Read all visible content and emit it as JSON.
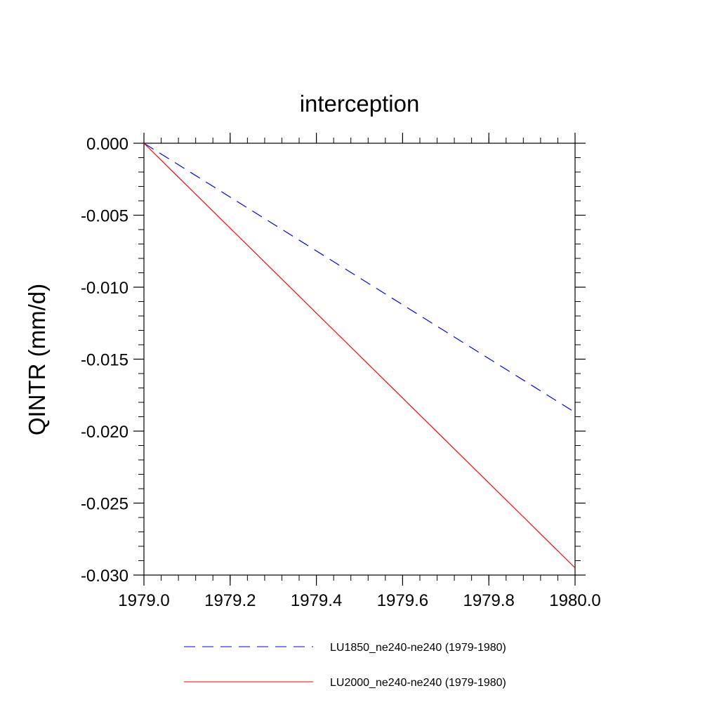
{
  "chart_data": {
    "type": "line",
    "title": "interception",
    "xlabel": "",
    "ylabel": "QINTR  (mm/d)",
    "xlim": [
      1979.0,
      1980.0
    ],
    "ylim": [
      -0.03,
      0.0
    ],
    "xticks": [
      "1979.0",
      "1979.2",
      "1979.4",
      "1979.6",
      "1979.8",
      "1980.0"
    ],
    "yticks": [
      "0.000",
      "-0.005",
      "-0.010",
      "-0.015",
      "-0.020",
      "-0.025",
      "-0.030"
    ],
    "grid": false,
    "legend_position": "bottom",
    "series": [
      {
        "name": "LU1850_ne240-ne240 (1979-1980)",
        "color": "#0000ff",
        "style": "dashed",
        "x": [
          1979.0,
          1980.0
        ],
        "y": [
          0.0,
          -0.0187
        ]
      },
      {
        "name": "LU2000_ne240-ne240 (1979-1980)",
        "color": "#ff0000",
        "style": "solid",
        "x": [
          1979.0,
          1980.0
        ],
        "y": [
          0.0,
          -0.0295
        ]
      }
    ]
  }
}
